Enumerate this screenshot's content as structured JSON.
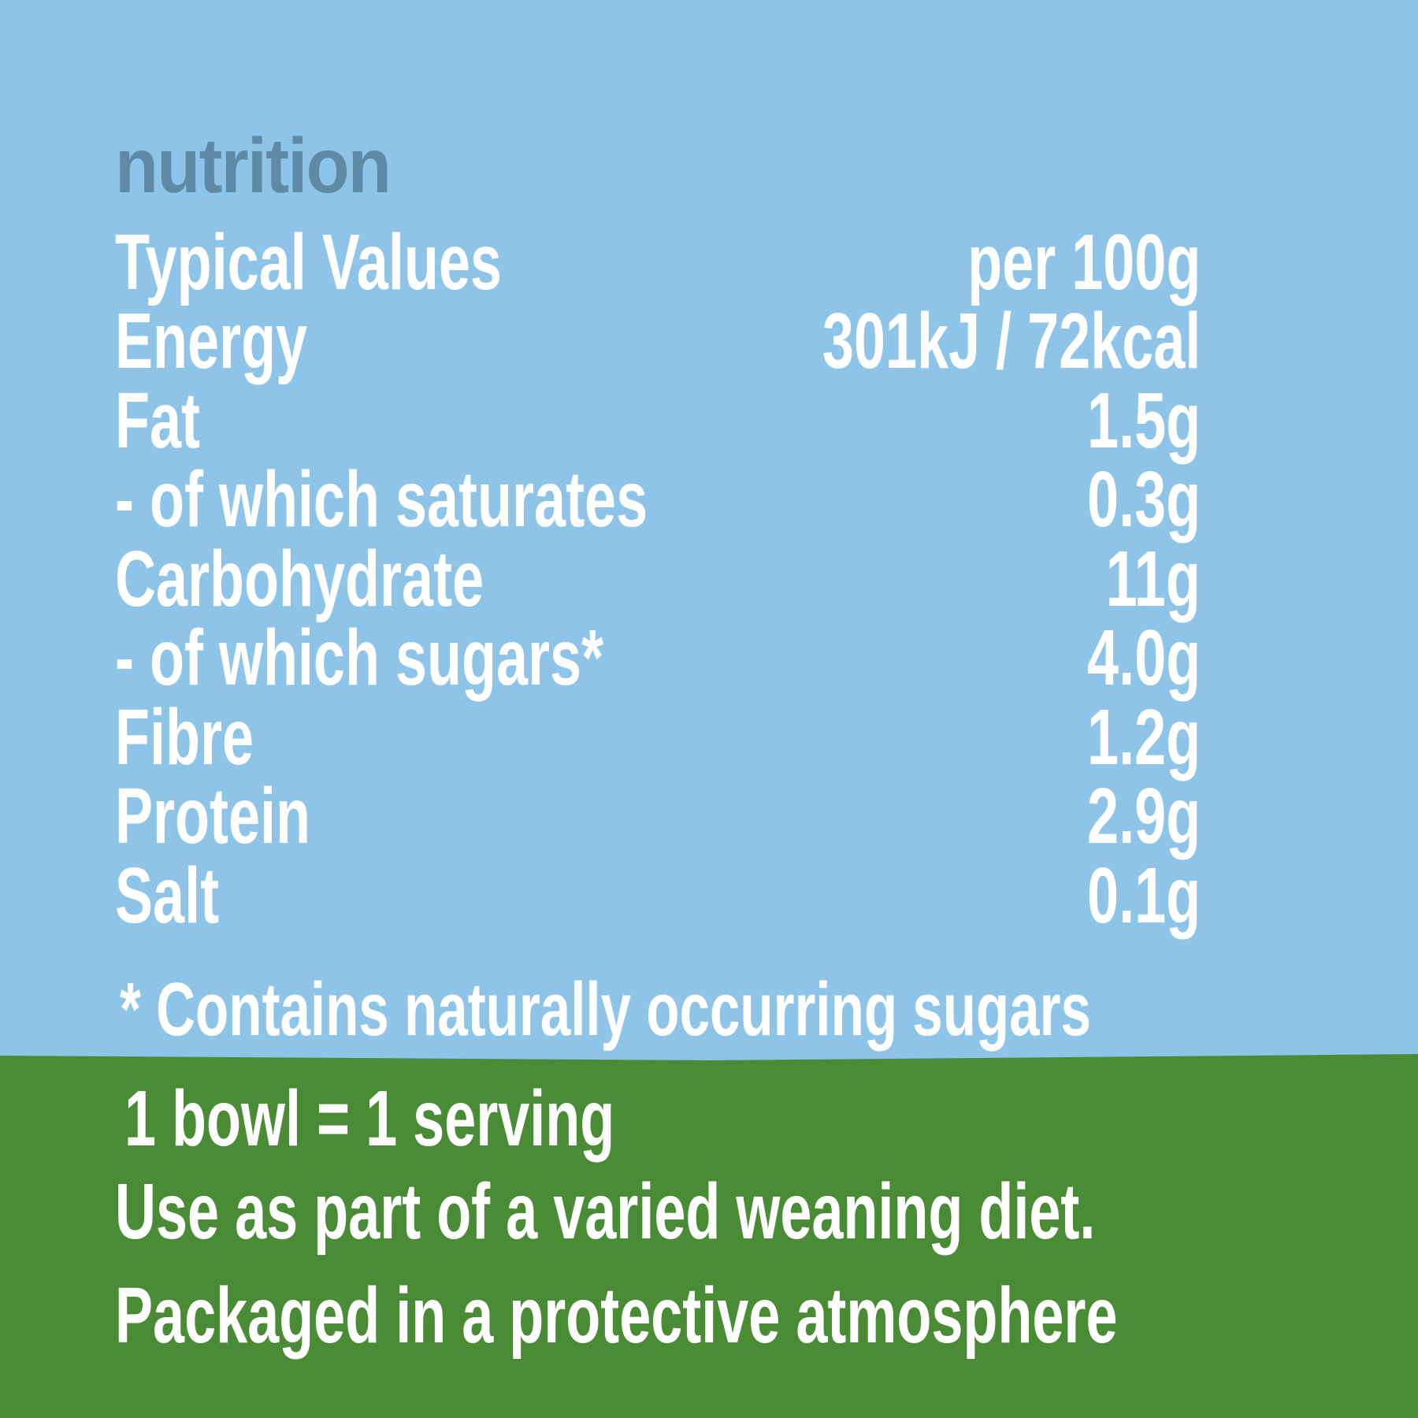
{
  "colors": {
    "background": "#8DC4E8",
    "footer": "#4A8C35",
    "title": "#5E8AA6",
    "text": "#FFFFFF"
  },
  "title": "nutrition",
  "header": {
    "label": "Typical Values",
    "value": "per 100g"
  },
  "rows": [
    {
      "label": "Energy",
      "value": "301kJ / 72kcal"
    },
    {
      "label": "Fat",
      "value": "1.5g"
    },
    {
      "label": "- of which saturates",
      "value": "0.3g"
    },
    {
      "label": "Carbohydrate",
      "value": "11g"
    },
    {
      "label": "- of which sugars*",
      "value": "4.0g"
    },
    {
      "label": "Fibre",
      "value": "1.2g"
    },
    {
      "label": "Protein",
      "value": "2.9g"
    },
    {
      "label": "Salt",
      "value": "0.1g"
    }
  ],
  "footnote": "* Contains naturally occurring sugars",
  "footer": {
    "serving": "1 bowl = 1 serving",
    "advice": "Use as part of a varied weaning diet.",
    "packaging": "Packaged in a protective atmosphere"
  }
}
